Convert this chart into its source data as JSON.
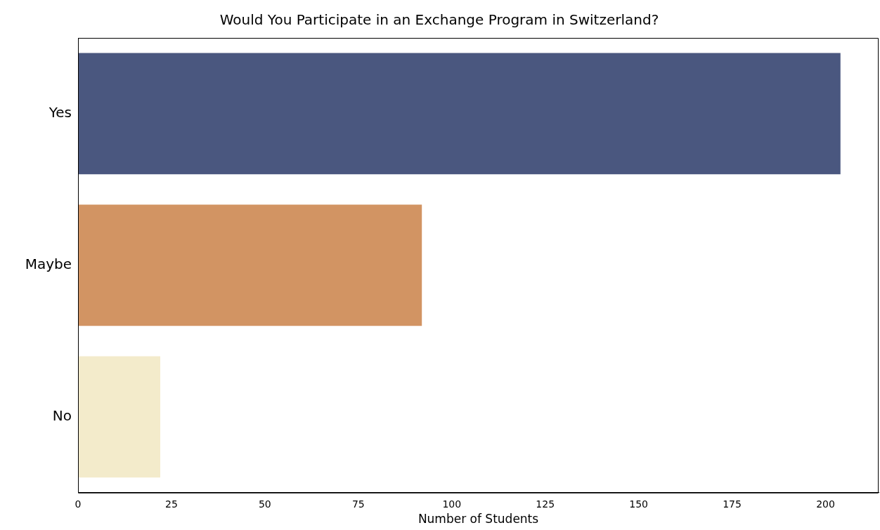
{
  "chart_data": {
    "type": "bar",
    "orientation": "horizontal",
    "title": "Would You Participate in an Exchange Program in Switzerland?",
    "xlabel": "Number of Students",
    "categories": [
      "Yes",
      "Maybe",
      "No"
    ],
    "values": [
      204,
      92,
      22
    ],
    "colors": [
      "#4a577f",
      "#d29463",
      "#f3ebcb"
    ],
    "xlim": [
      0,
      214.2
    ],
    "xticks": [
      0,
      25,
      50,
      75,
      100,
      125,
      150,
      175,
      200
    ]
  }
}
